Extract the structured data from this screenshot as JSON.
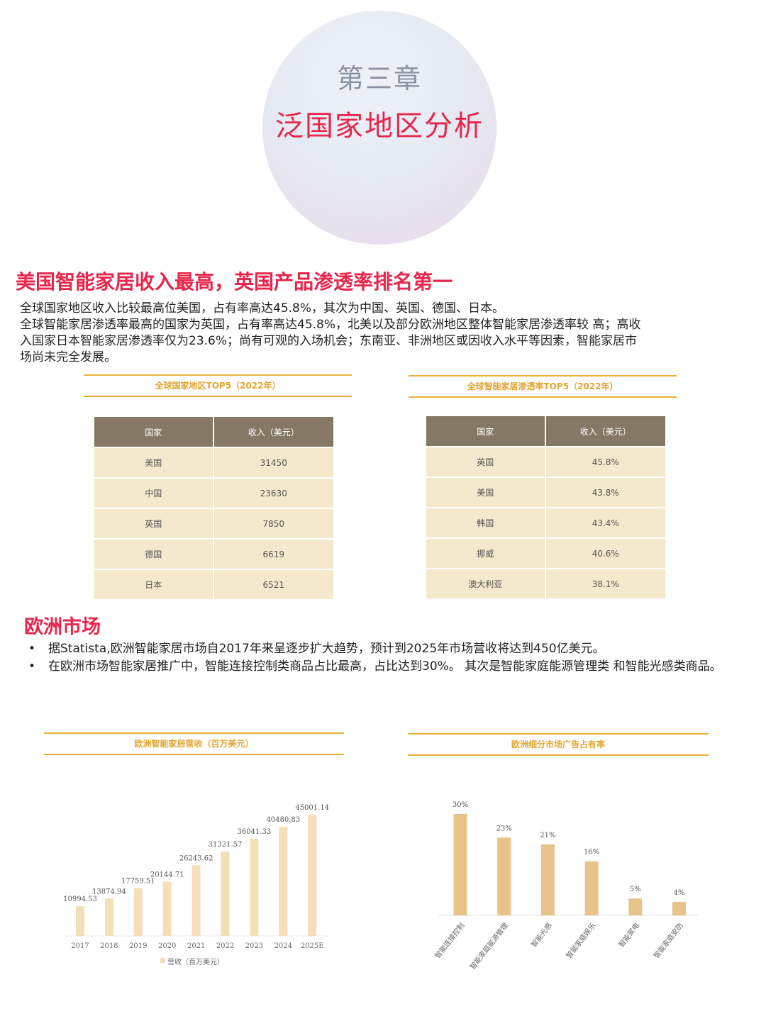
{
  "chapter": {
    "number": "第三章",
    "title": "泛国家地区分析"
  },
  "section1": {
    "heading": "美国智能家居收入最高，英国产品渗透率排名第一",
    "paragraph_lines": [
      "全球国家地区收入比较最高位美国，占有率高达45.8%，其次为中国、英国、德国、日本。",
      "全球智能家居渗透率最高的国家为英国，占有率高达45.8%，北美以及部分欧洲地区整体智能家居渗透率较 高；高收",
      "入国家日本智能家居渗透率仅为23.6%；尚有可观的入场机会；东南亚、非洲地区或因收入水平等因素，智能家居市",
      "场尚未完全发展。"
    ]
  },
  "table_revenue": {
    "caption": "全球国家地区TOP5（2022年）",
    "headers": [
      "国家",
      "收入（美元）"
    ],
    "rows": [
      [
        "美国",
        "31450"
      ],
      [
        "中国",
        "23630"
      ],
      [
        "英国",
        "7850"
      ],
      [
        "德国",
        "6619"
      ],
      [
        "日本",
        "6521"
      ]
    ]
  },
  "table_penetration": {
    "caption": "全球智能家居渗透率TOP5（2022年）",
    "headers": [
      "国家",
      "收入（美元）"
    ],
    "rows": [
      [
        "英国",
        "45.8%"
      ],
      [
        "美国",
        "43.8%"
      ],
      [
        "韩国",
        "43.4%"
      ],
      [
        "挪威",
        "40.6%"
      ],
      [
        "澳大利亚",
        "38.1%"
      ]
    ]
  },
  "section2": {
    "heading": "欧洲市场",
    "bullets": [
      "据Statista,欧洲智能家居市场自2017年来呈逐步扩大趋势，预计到2025年市场营收将达到450亿美元。",
      "在欧洲市场智能家居推广中，智能连接控制类商品占比最高，占比达到30%。 其次是智能家庭能源管理类 和智能光感类商品。"
    ]
  },
  "colors": {
    "accent": "#e8264c",
    "gold": "#e7b23c",
    "bar": "#e8c38a",
    "bar_light": "#f3dfb8",
    "header": "#857865",
    "cell": "#f4e8cd"
  },
  "chart_data": [
    {
      "type": "bar",
      "title": "欧洲智能家居营收（百万美元）",
      "categories": [
        "2017",
        "2018",
        "2019",
        "2020",
        "2021",
        "2022",
        "2023",
        "2024",
        "2025E"
      ],
      "series": [
        {
          "name": "营收（百万美元）",
          "values": [
            10994.53,
            13874.94,
            17759.51,
            20144.71,
            26243.62,
            31321.57,
            36041.33,
            40480.83,
            45001.14
          ]
        }
      ],
      "value_labels": [
        "10994.53",
        "13874.94",
        "17759.51",
        "20144.71",
        "26243.62",
        "31321.57",
        "36041.33",
        "40480.83",
        "45001.14"
      ],
      "ylim": [
        0,
        50000
      ],
      "legend": "bottom"
    },
    {
      "type": "bar",
      "title": "欧洲细分市场广告占有率",
      "categories": [
        "智能连接控制",
        "智能家庭能源管理",
        "智能光感",
        "智能家庭娱乐",
        "智能家电",
        "智能家庭安防"
      ],
      "values": [
        30,
        23,
        21,
        16,
        5,
        4
      ],
      "value_labels": [
        "30%",
        "23%",
        "21%",
        "16%",
        "5%",
        "4%"
      ],
      "ylim": [
        0,
        35
      ]
    }
  ]
}
